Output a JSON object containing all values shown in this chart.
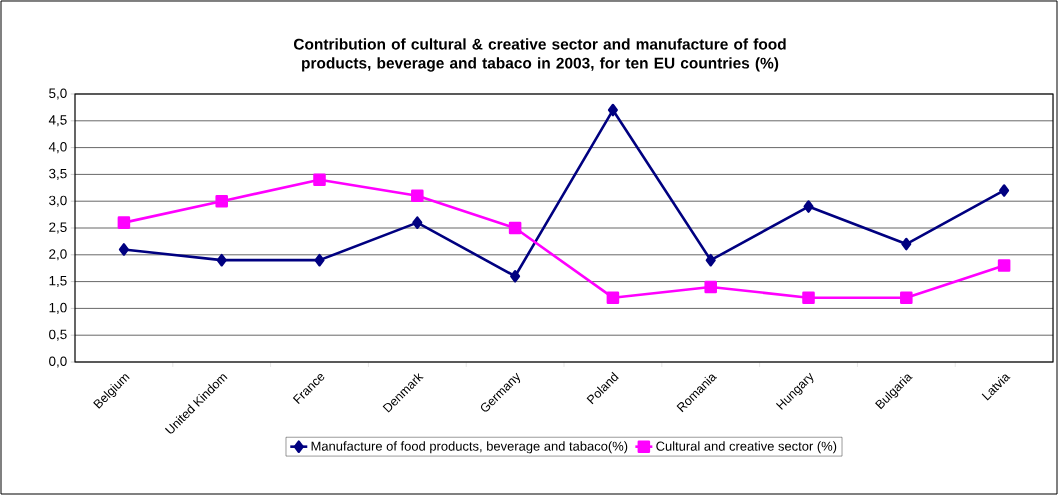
{
  "chart_data": {
    "type": "line",
    "title": "Contribution of cultural & creative sector and manufacture of food products, beverage and tabaco in 2003, for ten EU countries  (%)",
    "categories": [
      "Belgium",
      "United Kindom",
      "France",
      "Denmark",
      "Germany",
      "Poland",
      "Romania",
      "Hungary",
      "Bulgaria",
      "Latvia"
    ],
    "series": [
      {
        "name": "Manufacture of food products, beverage and tabaco(%)",
        "color": "#000080",
        "marker": "diamond",
        "values": [
          2.1,
          1.9,
          1.9,
          2.6,
          1.6,
          4.7,
          1.9,
          2.9,
          2.2,
          3.2
        ]
      },
      {
        "name": "Cultural and creative sector (%)",
        "color": "#ff00ff",
        "marker": "square",
        "values": [
          2.6,
          3.0,
          3.4,
          3.1,
          2.5,
          1.2,
          1.4,
          1.2,
          1.2,
          1.8
        ]
      }
    ],
    "ylim": [
      0,
      5
    ],
    "yticks": [
      {
        "value": 0,
        "label": "0,0"
      },
      {
        "value": 0.5,
        "label": "0,5"
      },
      {
        "value": 1,
        "label": "1,0"
      },
      {
        "value": 1.5,
        "label": "1,5"
      },
      {
        "value": 2,
        "label": "2,0"
      },
      {
        "value": 2.5,
        "label": "2,5"
      },
      {
        "value": 3,
        "label": "3,0"
      },
      {
        "value": 3.5,
        "label": "3,5"
      },
      {
        "value": 4,
        "label": "4,0"
      },
      {
        "value": 4.5,
        "label": "4,5"
      },
      {
        "value": 5,
        "label": "5,0"
      }
    ],
    "grid": "y",
    "legend": "bottom",
    "line_style": "solid"
  }
}
